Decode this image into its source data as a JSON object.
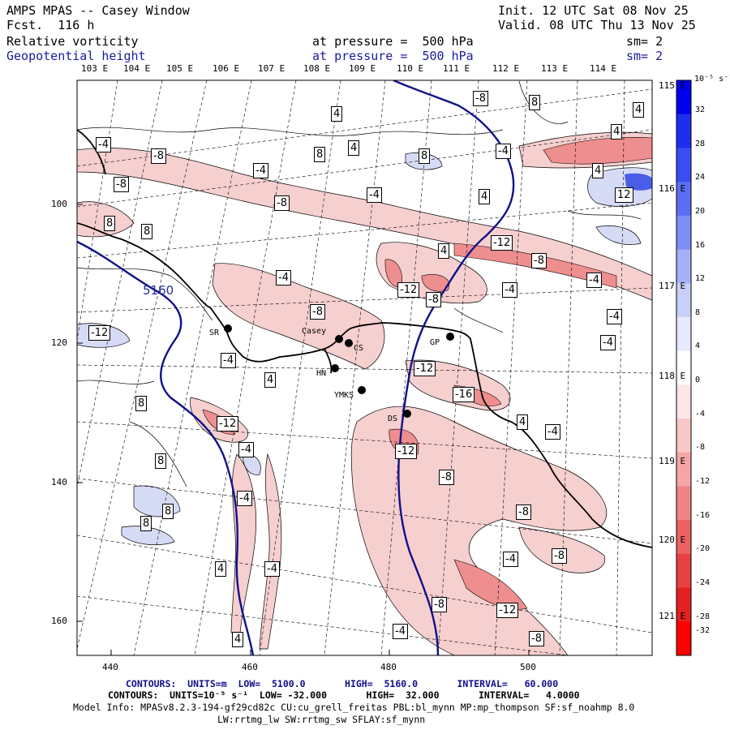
{
  "header": {
    "app_title": "AMPS MPAS -- Casey Window",
    "forecast": "Fcst.  116 h",
    "init": "Init. 12 UTC Sat 08 Nov 25",
    "valid": "Valid. 08 UTC Thu 13 Nov 25",
    "field1_name": "Relative vorticity",
    "field1_level": "at pressure =  500 hPa",
    "field1_sm": "sm= 2",
    "field2_name": "Geopotential height",
    "field2_level": "at pressure =  500 hPa",
    "field2_sm": "sm= 2"
  },
  "colors": {
    "blue_text": "#1a1aa0",
    "height_contour": "#10108a",
    "coast": "#000000",
    "neg_fill": "#f4c6c6",
    "pos_fill": "#d8dcf4"
  },
  "top_longitudes": [
    "103 E",
    "104 E",
    "105 E",
    "106 E",
    "107 E",
    "108 E",
    "109 E",
    "110 E",
    "111 E",
    "112 E",
    "113 E",
    "114 E"
  ],
  "right_longitudes": [
    "115 E",
    "116 E",
    "117 E",
    "118 E",
    "119 E",
    "120 E",
    "121 E"
  ],
  "y_axis_ticks": [
    "100",
    "120",
    "140",
    "160"
  ],
  "x_axis_ticks": [
    "440",
    "460",
    "480",
    "500"
  ],
  "colorbar": {
    "unit_label": "10⁻⁵ s⁻¹",
    "levels": [
      32,
      28,
      24,
      20,
      16,
      12,
      8,
      4,
      0,
      -4,
      -8,
      -12,
      -16,
      -20,
      -24,
      -28,
      -32
    ],
    "colors": [
      "#0000ee",
      "#1e2ef0",
      "#3a4ef2",
      "#5a6ef4",
      "#7e8ef6",
      "#a4b0f8",
      "#c8d0fa",
      "#e6eafc",
      "#ffffff",
      "#fce6e6",
      "#f8c8c8",
      "#f4a6a6",
      "#f08484",
      "#ec6262",
      "#e84040",
      "#e42020",
      "#ff0000"
    ]
  },
  "stations": [
    "SR",
    "Casey",
    "CS",
    "HN",
    "YMKS",
    "GP",
    "DS"
  ],
  "contour_labels": {
    "height": "5160",
    "vorticity": [
      "4",
      "8",
      "4",
      "-8",
      "4",
      "-4",
      "-8",
      "8",
      "4",
      "8",
      "-4",
      "-4",
      "-8",
      "-8",
      "4",
      "12",
      "-4",
      "4",
      "8",
      "-4",
      "-12",
      "-8",
      "-4",
      "-12",
      "-8",
      "-4",
      "4",
      "8",
      "-8",
      "-12",
      "-4",
      "-4",
      "-12",
      "-4",
      "-16",
      "4",
      "-12",
      "-4",
      "8",
      "8",
      "-4",
      "4",
      "8",
      "-12",
      "-8",
      "-8",
      "8",
      "-4",
      "-8",
      "4",
      "-4",
      "4",
      "-8",
      "-12",
      "-4",
      "-8",
      "-4"
    ]
  },
  "footer": {
    "contours1": "CONTOURS:  UNITS=m  LOW=  5100.0       HIGH=  5160.0       INTERVAL=   60.000",
    "contours2": "CONTOURS:  UNITS=10⁻⁵ s⁻¹  LOW= -32.000       HIGH=  32.000       INTERVAL=   4.0000",
    "model_info": "Model Info: MPASv8.2.3-194-gf29cd82c CU:cu_grell_freitas PBL:bl_mynn MP:mp_thompson SF:sf_noahmp 8.0",
    "model_info2": "LW:rrtmg_lw SW:rrtmg_sw SFLAY:sf_mynn"
  }
}
